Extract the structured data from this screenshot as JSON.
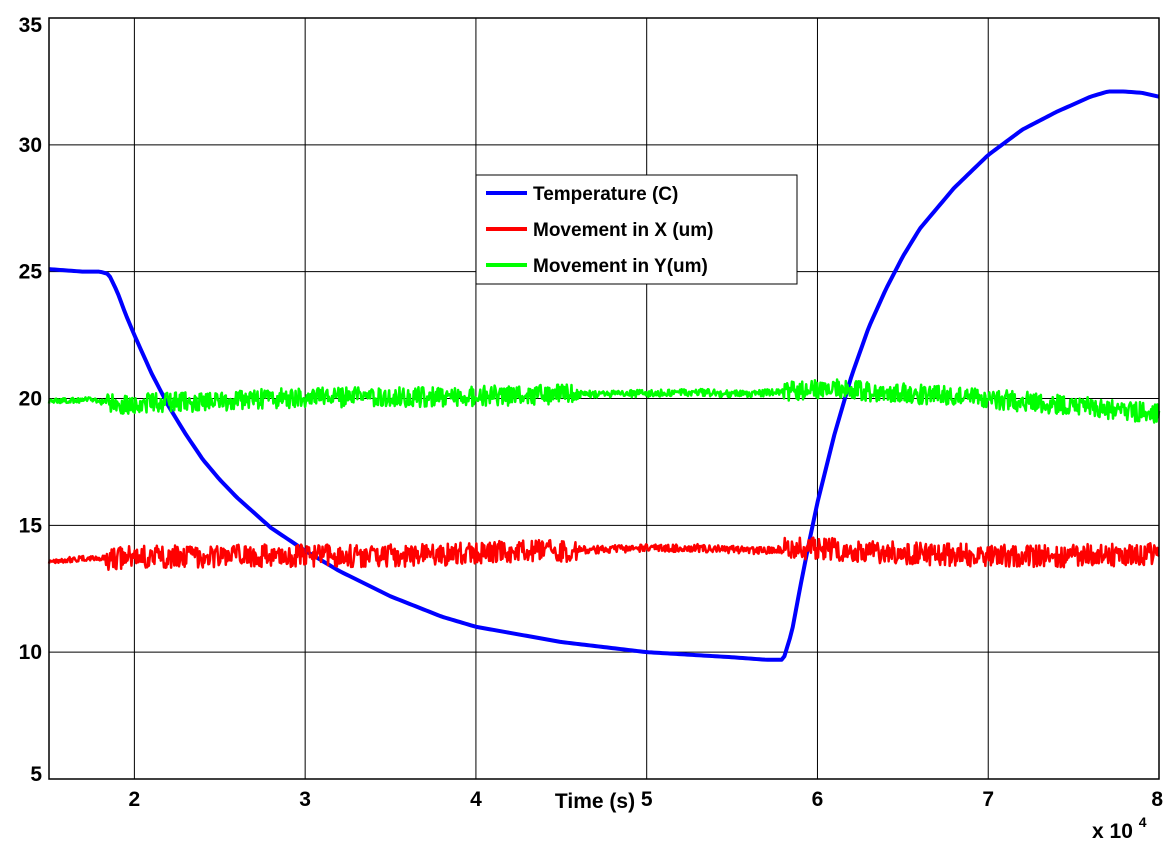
{
  "chart_data": {
    "type": "line",
    "title": "",
    "xlabel": "Time (s)",
    "ylabel": "",
    "x_multiplier_label": "x 10",
    "x_multiplier_exponent": "4",
    "xlim": [
      1.5,
      8
    ],
    "ylim": [
      5,
      35
    ],
    "x_ticks": [
      2,
      3,
      4,
      5,
      6,
      7,
      8
    ],
    "y_ticks": [
      5,
      10,
      15,
      20,
      25,
      30,
      35
    ],
    "grid": true,
    "legend_position": "upper-center",
    "series": [
      {
        "name": "Temperature (C)",
        "color": "#0000ff",
        "noise": 0,
        "x": [
          1.5,
          1.6,
          1.7,
          1.8,
          1.85,
          1.9,
          1.95,
          2.0,
          2.1,
          2.2,
          2.3,
          2.4,
          2.5,
          2.6,
          2.8,
          3.0,
          3.2,
          3.5,
          3.8,
          4.0,
          4.5,
          5.0,
          5.5,
          5.7,
          5.8,
          5.85,
          5.9,
          5.95,
          6.0,
          6.1,
          6.2,
          6.3,
          6.4,
          6.5,
          6.6,
          6.8,
          7.0,
          7.2,
          7.4,
          7.6,
          7.7,
          7.8,
          7.9,
          8.0
        ],
        "y": [
          25.1,
          25.05,
          25.0,
          25.0,
          24.9,
          24.2,
          23.3,
          22.5,
          21.0,
          19.7,
          18.6,
          17.6,
          16.8,
          16.1,
          14.9,
          14.0,
          13.2,
          12.2,
          11.4,
          11.0,
          10.4,
          10.0,
          9.8,
          9.7,
          9.7,
          10.8,
          12.6,
          14.3,
          15.9,
          18.6,
          20.9,
          22.8,
          24.3,
          25.6,
          26.7,
          28.3,
          29.6,
          30.6,
          31.3,
          31.9,
          32.1,
          32.1,
          32.05,
          31.9
        ]
      },
      {
        "name": "Movement in X (um)",
        "color": "#ff0000",
        "noise": 0.45,
        "x": [
          1.5,
          1.75,
          1.85,
          2.0,
          2.5,
          3.0,
          3.5,
          4.0,
          4.5,
          5.0,
          5.3,
          5.6,
          5.8,
          6.0,
          6.5,
          7.0,
          7.5,
          8.0
        ],
        "y": [
          13.6,
          13.7,
          13.7,
          13.75,
          13.8,
          13.8,
          13.8,
          13.9,
          14.0,
          14.1,
          14.1,
          14.0,
          14.05,
          14.1,
          13.9,
          13.8,
          13.8,
          13.85
        ]
      },
      {
        "name": "Movement in Y(um)",
        "color": "#00ff00",
        "noise": 0.4,
        "x": [
          1.5,
          1.75,
          1.85,
          2.0,
          2.5,
          3.0,
          3.5,
          4.0,
          4.5,
          5.0,
          5.3,
          5.6,
          5.8,
          6.0,
          6.5,
          7.0,
          7.5,
          8.0
        ],
        "y": [
          19.9,
          19.95,
          19.8,
          19.8,
          19.9,
          20.05,
          20.05,
          20.1,
          20.15,
          20.2,
          20.25,
          20.15,
          20.3,
          20.4,
          20.2,
          20.0,
          19.7,
          19.4
        ]
      }
    ]
  }
}
